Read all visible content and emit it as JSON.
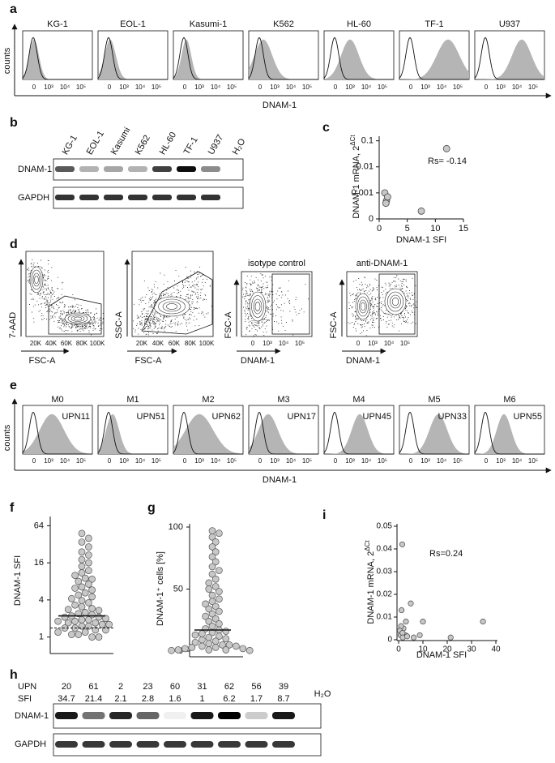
{
  "panel_a": {
    "label": "a",
    "y_label": "counts",
    "x_label": "DNAM-1",
    "x_ticks": [
      "0",
      "10³",
      "10⁴",
      "10⁵"
    ],
    "samples": [
      "KG-1",
      "EOL-1",
      "Kasumi-1",
      "K562",
      "HL-60",
      "TF-1",
      "U937"
    ]
  },
  "panel_b": {
    "label": "b",
    "lanes": [
      "KG-1",
      "EOL-1",
      "Kasumi",
      "K562",
      "HL-60",
      "TF-1",
      "U937",
      "H₂O"
    ],
    "rows": [
      "DNAM-1",
      "GAPDH"
    ]
  },
  "panel_c": {
    "label": "c",
    "type": "scatter",
    "y_label": "DNAM-1 mRNA, 2",
    "y_label_sup": "ΔCt",
    "x_label": "DNAM-1 SFI",
    "annotation": "Rs= -0.14",
    "x": [
      1,
      1.3,
      1.5,
      1.2,
      7.5,
      12
    ],
    "y": [
      0.001,
      0.0005,
      0.0007,
      0.0004,
      0.0002,
      0.05
    ],
    "xlim": [
      0,
      15
    ],
    "xticks": [
      0,
      5,
      10,
      15
    ],
    "ylim": [
      0,
      0.15
    ],
    "yticks": [
      0,
      0.001,
      0.01,
      0.1
    ],
    "yscale": "log"
  },
  "panel_d": {
    "label": "d",
    "plots": [
      {
        "y_label": "7-AAD",
        "x_label": "FSC-A",
        "x_ticks": [
          "20K",
          "40K",
          "60K",
          "80K",
          "100K"
        ]
      },
      {
        "y_label": "SSC-A",
        "x_label": "FSC-A",
        "x_ticks": [
          "20K",
          "40K",
          "60K",
          "80K",
          "100K"
        ]
      },
      {
        "title": "isotype control",
        "y_label": "FSC-A",
        "x_label": "DNAM-1",
        "x_ticks": [
          "0",
          "10³",
          "10⁴",
          "10⁵"
        ]
      },
      {
        "title": "anti-DNAM-1",
        "y_label": "FSC-A",
        "x_label": "DNAM-1",
        "x_ticks": [
          "0",
          "10³",
          "10⁴",
          "10⁵"
        ]
      }
    ]
  },
  "panel_e": {
    "label": "e",
    "y_label": "counts",
    "x_label": "DNAM-1",
    "x_ticks": [
      "0",
      "10³",
      "10⁴",
      "10⁵"
    ],
    "samples": [
      {
        "subtype": "M0",
        "upn": "UPN11"
      },
      {
        "subtype": "M1",
        "upn": "UPN51"
      },
      {
        "subtype": "M2",
        "upn": "UPN62"
      },
      {
        "subtype": "M3",
        "upn": "UPN17"
      },
      {
        "subtype": "M4",
        "upn": "UPN45"
      },
      {
        "subtype": "M5",
        "upn": "UPN33"
      },
      {
        "subtype": "M6",
        "upn": "UPN55"
      }
    ]
  },
  "panel_f": {
    "label": "f",
    "type": "scatter",
    "y_label": "DNAM-1 SFI",
    "yscale": "log2",
    "ylim": [
      0.85,
      80
    ],
    "yticks": [
      1,
      4,
      16,
      64
    ],
    "values": [
      48,
      40,
      34.7,
      29,
      24,
      21.4,
      18,
      16,
      14,
      12,
      11,
      10,
      9,
      8.7,
      8,
      7.2,
      6.5,
      6.2,
      5.8,
      5.2,
      4.8,
      4.5,
      4.2,
      3.9,
      3.6,
      3.3,
      3.1,
      2.9,
      2.8,
      2.7,
      2.5,
      2.4,
      2.3,
      2.2,
      2.1,
      2.1,
      2.0,
      1.9,
      1.9,
      1.8,
      1.8,
      1.7,
      1.7,
      1.6,
      1.6,
      1.5,
      1.5,
      1.4,
      1.4,
      1.3,
      1.3,
      1.2,
      1.2,
      1.1,
      1.1,
      1.0,
      1.0
    ],
    "median": 2.2,
    "cutoff": 1.4
  },
  "panel_g": {
    "label": "g",
    "type": "scatter",
    "y_label": "DNAM-1⁺ cells [%]",
    "ylim": [
      0,
      100
    ],
    "yticks": [
      0,
      50,
      100
    ],
    "values": [
      97,
      95,
      92,
      88,
      84,
      80,
      76,
      72,
      68,
      65,
      62,
      58,
      55,
      52,
      50,
      48,
      45,
      42,
      40,
      38,
      36,
      34,
      32,
      30,
      28,
      26,
      24,
      22,
      20,
      18,
      17,
      16,
      15,
      14,
      13,
      12,
      11,
      10,
      9,
      8,
      7,
      6,
      5,
      5,
      4,
      4,
      3,
      3,
      2,
      2,
      1,
      1,
      1,
      0.5,
      0.5
    ],
    "median": 17
  },
  "panel_h": {
    "label": "h",
    "header": [
      "UPN",
      "SFI"
    ],
    "water": "H₂O",
    "rows": [
      "DNAM-1",
      "GAPDH"
    ],
    "columns": [
      {
        "upn": "20",
        "sfi": "34.7"
      },
      {
        "upn": "61",
        "sfi": "21.4"
      },
      {
        "upn": "2",
        "sfi": "2.1"
      },
      {
        "upn": "23",
        "sfi": "2.8"
      },
      {
        "upn": "60",
        "sfi": "1.6"
      },
      {
        "upn": "31",
        "sfi": "1"
      },
      {
        "upn": "62",
        "sfi": "6.2"
      },
      {
        "upn": "56",
        "sfi": "1.7"
      },
      {
        "upn": "39",
        "sfi": "8.7"
      }
    ]
  },
  "panel_i": {
    "label": "i",
    "type": "scatter",
    "y_label": "DNAM-1 mRNA, 2",
    "y_label_sup": "ΔCt",
    "x_label": "DNAM-1 SFI",
    "annotation": "Rs=0.24",
    "x": [
      1.5,
      1.2,
      3,
      5,
      2,
      10,
      1,
      0.5,
      0.8,
      2.8,
      1.6,
      21.4,
      34.7,
      6.2,
      8.7,
      1.7,
      3.5
    ],
    "y": [
      0.042,
      0.013,
      0.008,
      0.016,
      0.005,
      0.008,
      0.006,
      0.004,
      0.002,
      0.002,
      0.003,
      0.001,
      0.008,
      0.001,
      0.002,
      0.001,
      0.0015
    ],
    "xlim": [
      0,
      40
    ],
    "xticks": [
      0,
      10,
      20,
      30,
      40
    ],
    "ylim": [
      0,
      0.05
    ],
    "yticks": [
      0,
      0.01,
      0.02,
      0.03,
      0.04,
      0.05
    ]
  }
}
